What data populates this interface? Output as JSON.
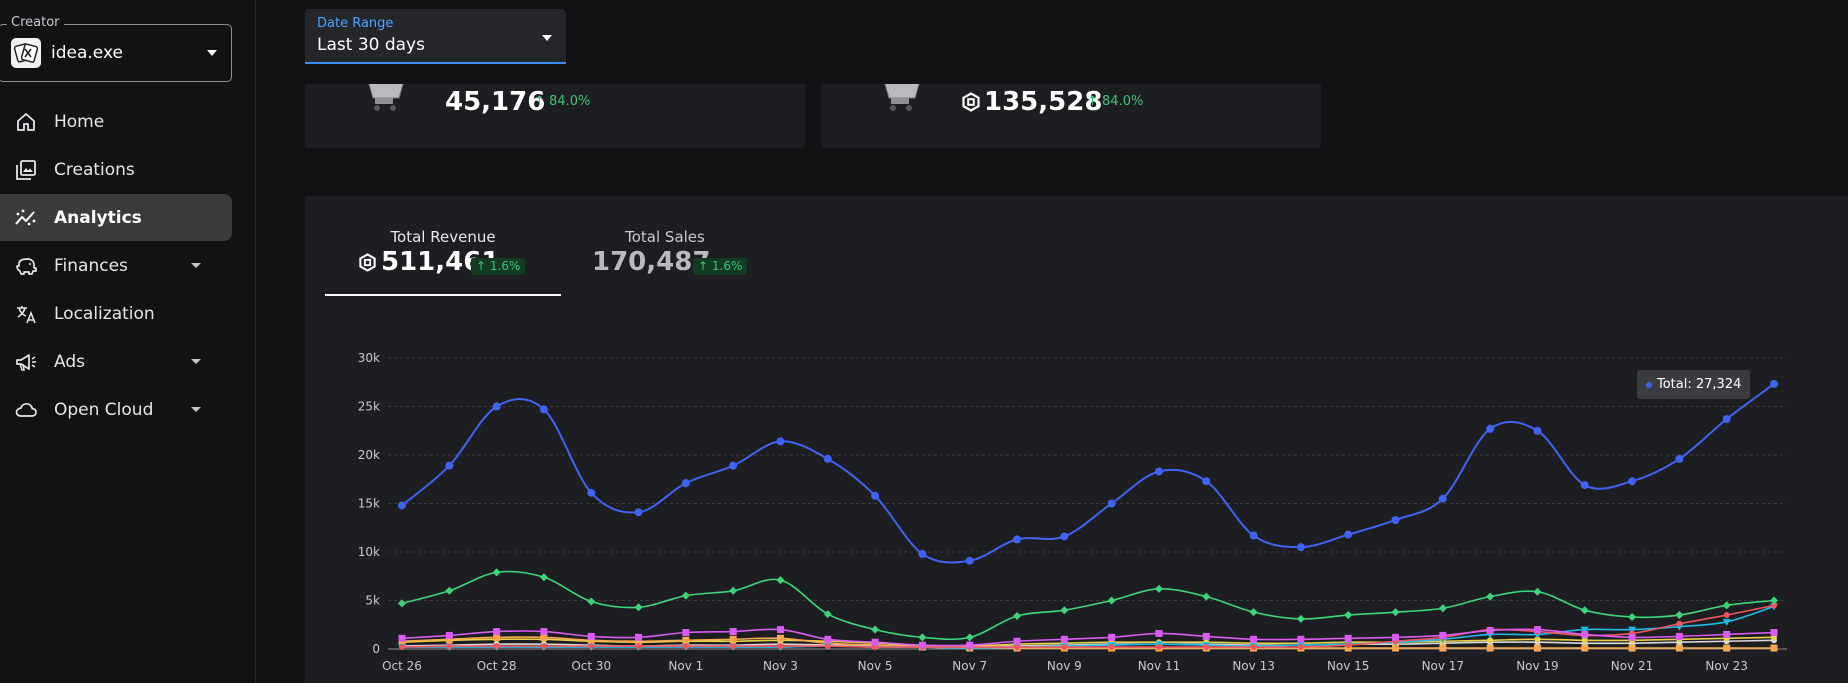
{
  "sidebar": {
    "creator_label": "Creator",
    "creator_name": "idea.exe",
    "items": [
      {
        "label": "Home",
        "icon": "home-icon"
      },
      {
        "label": "Creations",
        "icon": "creations-icon"
      },
      {
        "label": "Analytics",
        "icon": "analytics-icon",
        "active": true
      },
      {
        "label": "Finances",
        "icon": "piggy-bank-icon",
        "has_submenu": true
      },
      {
        "label": "Localization",
        "icon": "translate-icon"
      },
      {
        "label": "Ads",
        "icon": "megaphone-icon",
        "has_submenu": true
      },
      {
        "label": "Open Cloud",
        "icon": "cloud-icon",
        "has_submenu": true
      }
    ]
  },
  "date_range": {
    "label": "Date Range",
    "value": "Last 30 days"
  },
  "stat_cards": [
    {
      "value": "45,176",
      "change": "84.0%",
      "robux": false
    },
    {
      "value": "135,528",
      "change": "84.0%",
      "robux": true
    }
  ],
  "metrics": {
    "revenue": {
      "title": "Total Revenue",
      "value": "511,461",
      "change": "1.6%"
    },
    "sales": {
      "title": "Total Sales",
      "value": "170,487",
      "change": "1.6%"
    }
  },
  "tooltip": {
    "text": "Total: 27,324"
  },
  "colors": {
    "accent": "#3a8dff",
    "positive": "#3fc473",
    "total": "#3f63f2",
    "green": "#3ed57a",
    "magenta": "#d85cf0",
    "red": "#f0555e",
    "cyan": "#1fb9e6",
    "orange": "#f7a84f",
    "yellow": "#e8d24a",
    "white": "#d9d9d9"
  },
  "chart_data": {
    "type": "line",
    "x": [
      "Oct 26",
      "Oct 27",
      "Oct 28",
      "Oct 29",
      "Oct 30",
      "Oct 31",
      "Nov 1",
      "Nov 2",
      "Nov 3",
      "Nov 4",
      "Nov 5",
      "Nov 6",
      "Nov 7",
      "Nov 8",
      "Nov 9",
      "Nov 10",
      "Nov 11",
      "Nov 12",
      "Nov 13",
      "Nov 14",
      "Nov 15",
      "Nov 16",
      "Nov 17",
      "Nov 18",
      "Nov 19",
      "Nov 20",
      "Nov 21",
      "Nov 22",
      "Nov 23",
      "Nov 24"
    ],
    "x_tick_labels": [
      "Oct 26",
      "Oct 28",
      "Oct 30",
      "Nov 1",
      "Nov 3",
      "Nov 5",
      "Nov 7",
      "Nov 9",
      "Nov 11",
      "Nov 13",
      "Nov 15",
      "Nov 17",
      "Nov 19",
      "Nov 21",
      "Nov 23"
    ],
    "y_ticks": [
      "0",
      "5k",
      "10k",
      "15k",
      "20k",
      "25k",
      "30k"
    ],
    "ylim": [
      0,
      30000
    ],
    "grid": true,
    "series": [
      {
        "name": "Total",
        "color": "#3f63f2",
        "marker": "circle",
        "values": [
          14800,
          18900,
          25000,
          24700,
          16100,
          14100,
          17100,
          18900,
          21400,
          19600,
          15800,
          9800,
          9100,
          11300,
          11600,
          15000,
          18300,
          17300,
          11700,
          10500,
          11800,
          13300,
          15500,
          22700,
          22500,
          16900,
          17300,
          19600,
          23700,
          27324
        ]
      },
      {
        "values": [
          4700,
          6000,
          7900,
          7400,
          4900,
          4300,
          5500,
          6000,
          7100,
          3600,
          2000,
          1200,
          1200,
          3400,
          4000,
          5000,
          6200,
          5400,
          3800,
          3100,
          3500,
          3800,
          4200,
          5400,
          5900,
          4000,
          3300,
          3500,
          4500,
          5000
        ],
        "color": "#3ed57a",
        "marker": "diamond"
      },
      {
        "values": [
          1100,
          1400,
          1800,
          1800,
          1300,
          1200,
          1700,
          1800,
          2000,
          1000,
          700,
          400,
          400,
          800,
          1000,
          1200,
          1600,
          1300,
          1000,
          1000,
          1100,
          1200,
          1400,
          1900,
          2000,
          1500,
          1200,
          1300,
          1500,
          1700
        ],
        "color": "#d85cf0",
        "marker": "square"
      },
      {
        "values": [
          200,
          300,
          300,
          300,
          300,
          300,
          300,
          300,
          300,
          300,
          200,
          200,
          200,
          200,
          200,
          200,
          200,
          200,
          200,
          200,
          400,
          800,
          1200,
          2000,
          1800,
          1400,
          1600,
          2600,
          3500,
          4500
        ],
        "color": "#f0555e",
        "marker": "circle"
      },
      {
        "values": [
          200,
          200,
          200,
          200,
          200,
          200,
          200,
          200,
          200,
          300,
          200,
          200,
          100,
          200,
          300,
          400,
          500,
          400,
          300,
          400,
          500,
          700,
          1000,
          1500,
          1500,
          2000,
          2000,
          2300,
          2800,
          4400
        ],
        "color": "#1fb9e6",
        "marker": "triangle"
      },
      {
        "values": [
          800,
          1000,
          1200,
          1200,
          900,
          800,
          900,
          1000,
          1100,
          600,
          400,
          200,
          100,
          100,
          100,
          100,
          100,
          100,
          100,
          100,
          100,
          100,
          100,
          100,
          100,
          100,
          100,
          100,
          100,
          100
        ],
        "color": "#f7a84f",
        "marker": "square"
      },
      {
        "values": [
          700,
          900,
          1000,
          1000,
          800,
          700,
          800,
          800,
          900,
          800,
          600,
          300,
          300,
          500,
          600,
          700,
          700,
          700,
          600,
          600,
          700,
          700,
          800,
          900,
          1000,
          900,
          900,
          1000,
          1100,
          1200
        ],
        "color": "#e8d24a",
        "marker": "circle"
      },
      {
        "values": [
          300,
          400,
          500,
          500,
          400,
          300,
          400,
          400,
          500,
          400,
          300,
          200,
          200,
          300,
          400,
          500,
          500,
          500,
          400,
          400,
          500,
          500,
          600,
          700,
          700,
          600,
          600,
          700,
          800,
          900
        ],
        "color": "#d9d9d9",
        "marker": "circle"
      }
    ]
  }
}
